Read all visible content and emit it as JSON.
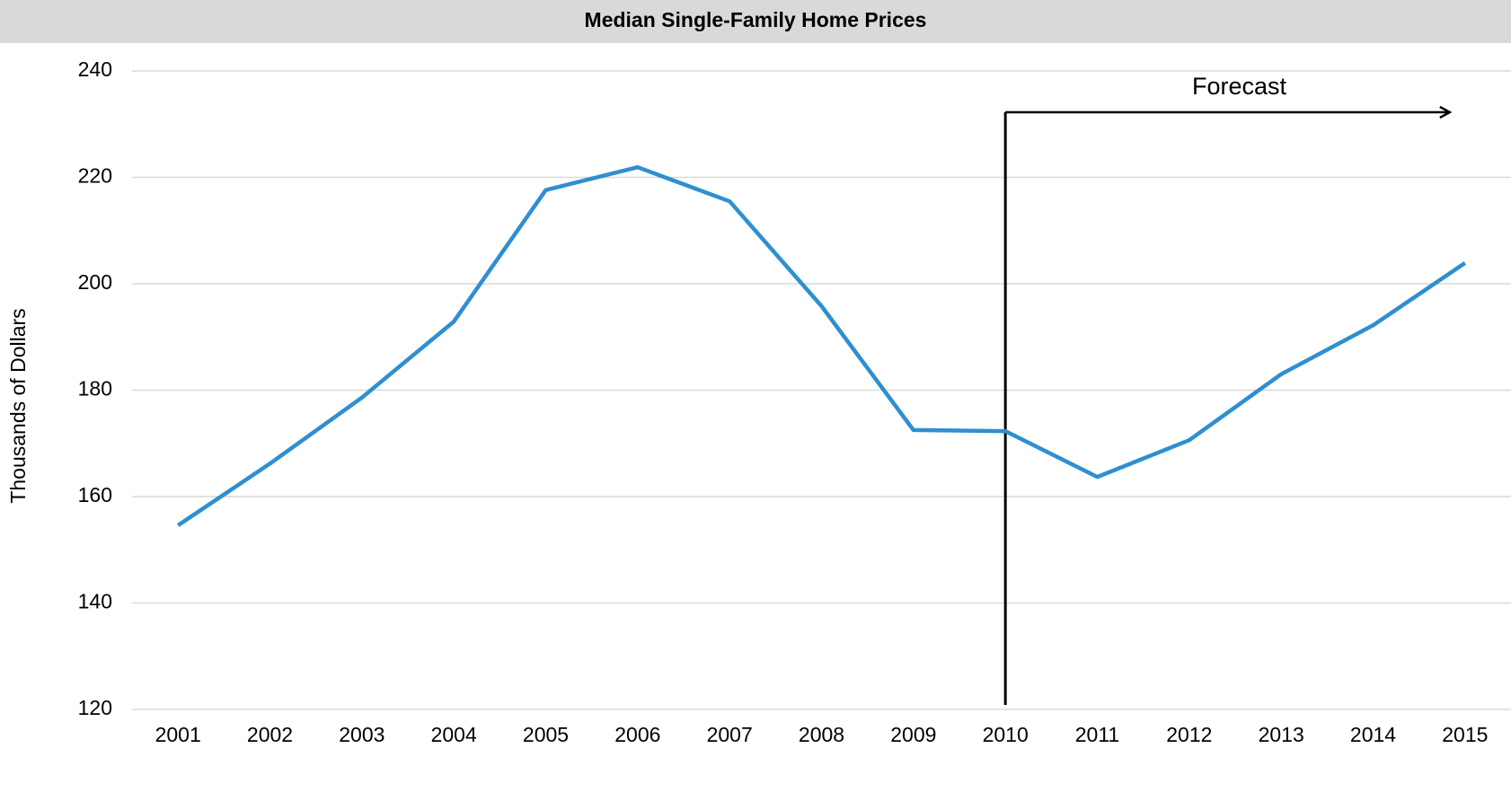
{
  "chart_data": {
    "type": "line",
    "title": "Median Single-Family Home Prices",
    "y_label": "Thousands of Dollars",
    "annotation": "Forecast",
    "categories": [
      "2001",
      "2002",
      "2003",
      "2004",
      "2005",
      "2006",
      "2007",
      "2008",
      "2009",
      "2010",
      "2011",
      "2012",
      "2013",
      "2014",
      "2015"
    ],
    "values": [
      154.6,
      166.2,
      178.6,
      192.9,
      217.6,
      221.9,
      215.5,
      195.8,
      172.5,
      172.3,
      163.7,
      170.6,
      183.0,
      192.2,
      203.9
    ],
    "color": "#2e8fd1",
    "ylim": [
      120,
      240
    ],
    "yticks": [
      120,
      140,
      160,
      180,
      200,
      220,
      240
    ],
    "grid": true
  }
}
